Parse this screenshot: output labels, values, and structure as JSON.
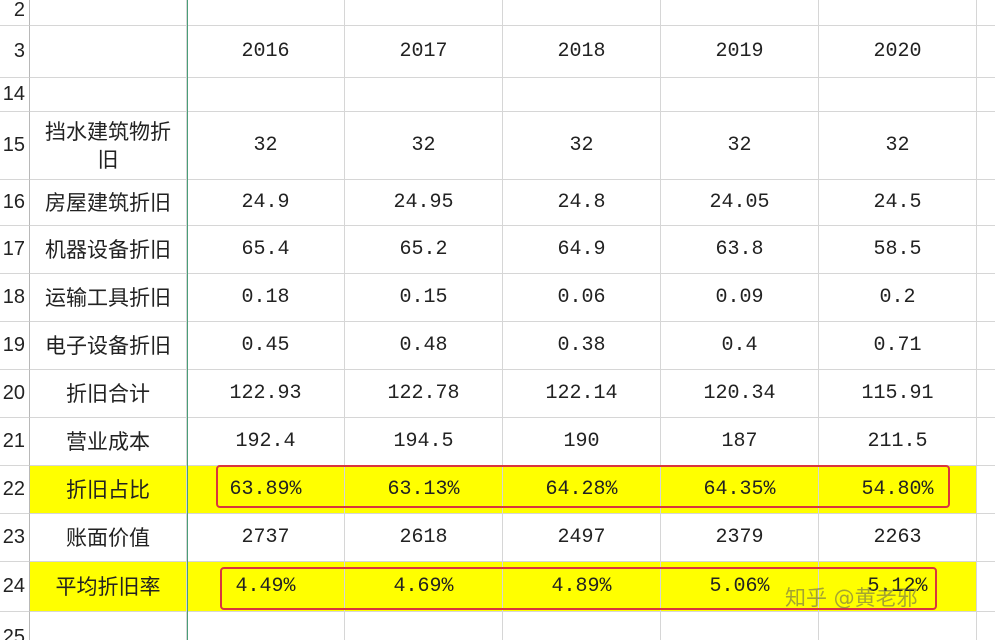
{
  "row_numbers": [
    "2",
    "3",
    "14",
    "15",
    "16",
    "17",
    "18",
    "19",
    "20",
    "21",
    "22",
    "23",
    "24",
    "25"
  ],
  "header": {
    "years": [
      "2016",
      "2017",
      "2018",
      "2019",
      "2020"
    ]
  },
  "rows": [
    {
      "label": "挡水建筑物折旧",
      "values": [
        "32",
        "32",
        "32",
        "32",
        "32"
      ]
    },
    {
      "label": "房屋建筑折旧",
      "values": [
        "24.9",
        "24.95",
        "24.8",
        "24.05",
        "24.5"
      ]
    },
    {
      "label": "机器设备折旧",
      "values": [
        "65.4",
        "65.2",
        "64.9",
        "63.8",
        "58.5"
      ]
    },
    {
      "label": "运输工具折旧",
      "values": [
        "0.18",
        "0.15",
        "0.06",
        "0.09",
        "0.2"
      ]
    },
    {
      "label": "电子设备折旧",
      "values": [
        "0.45",
        "0.48",
        "0.38",
        "0.4",
        "0.71"
      ]
    },
    {
      "label": "折旧合计",
      "values": [
        "122.93",
        "122.78",
        "122.14",
        "120.34",
        "115.91"
      ]
    },
    {
      "label": "营业成本",
      "values": [
        "192.4",
        "194.5",
        "190",
        "187",
        "211.5"
      ]
    },
    {
      "label": "折旧占比",
      "values": [
        "63.89%",
        "63.13%",
        "64.28%",
        "64.35%",
        "54.80%"
      ],
      "highlight": true
    },
    {
      "label": "账面价值",
      "values": [
        "2737",
        "2618",
        "2497",
        "2379",
        "2263"
      ]
    },
    {
      "label": "平均折旧率",
      "values": [
        "4.49%",
        "4.69%",
        "4.89%",
        "5.06%",
        "5.12%"
      ],
      "highlight": true
    }
  ],
  "watermark": "知乎 @黄老邪"
}
